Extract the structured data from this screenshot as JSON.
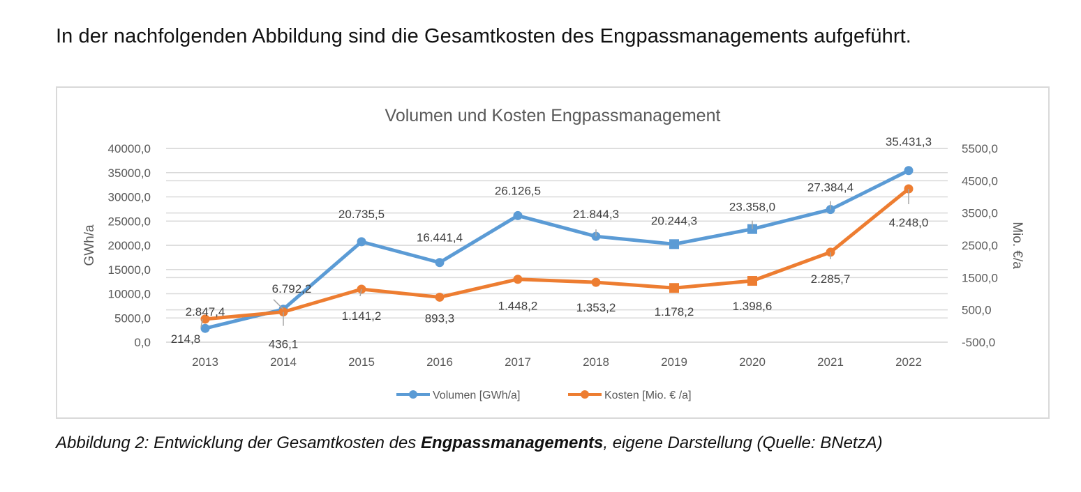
{
  "document": {
    "intro_text": "In der nachfolgenden Abbildung sind die Gesamtkosten des Engpassmanagements aufgeführt.",
    "caption": {
      "prefix": "Abbildung 2: Entwicklung der Gesamtkosten des ",
      "bold": "Engpassmanagements",
      "suffix": ", eigene Darstellung (Quelle: BNetzA)"
    }
  },
  "chart_data": {
    "type": "line",
    "title": "Volumen und Kosten Engpassmanagement",
    "xlabel": "",
    "ylabel": "GWh/a",
    "y2label": "Mio. €/a",
    "categories": [
      "2013",
      "2014",
      "2015",
      "2016",
      "2017",
      "2018",
      "2019",
      "2020",
      "2021",
      "2022"
    ],
    "ylim": [
      0,
      40000
    ],
    "yticks": [
      "0,0",
      "5000,0",
      "10000,0",
      "15000,0",
      "20000,0",
      "25000,0",
      "30000,0",
      "35000,0",
      "40000,0"
    ],
    "y2lim": [
      -500,
      5500
    ],
    "y2ticks": [
      "-500,0",
      "500,0",
      "1500,0",
      "2500,0",
      "3500,0",
      "4500,0",
      "5500,0"
    ],
    "grid": true,
    "legend_position": "bottom",
    "series": [
      {
        "name": "Volumen [GWh/a]",
        "axis": "left",
        "color": "#5b9bd5",
        "values": [
          2847.4,
          6792.2,
          20735.5,
          16441.4,
          26126.5,
          21844.3,
          20244.3,
          23358.0,
          27384.4,
          35431.3
        ],
        "labels": [
          "2.847,4",
          "6.792,2",
          "20.735,5",
          "16.441,4",
          "26.126,5",
          "21.844,3",
          "20.244,3",
          "23.358,0",
          "27.384,4",
          "35.431,3"
        ],
        "markers": [
          "circle",
          "circle",
          "circle",
          "circle",
          "circle",
          "circle",
          "square",
          "square",
          "circle",
          "circle"
        ]
      },
      {
        "name": "Kosten [Mio. € /a]",
        "axis": "right",
        "color": "#ed7d31",
        "values": [
          214.8,
          436.1,
          1141.2,
          893.3,
          1448.2,
          1353.2,
          1178.2,
          1398.6,
          2285.7,
          4248.0
        ],
        "labels": [
          "214,8",
          "436,1",
          "1.141,2",
          "893,3",
          "1.448,2",
          "1.353,2",
          "1.178,2",
          "1.398,6",
          "2.285,7",
          "4.248,0"
        ],
        "markers": [
          "circle",
          "circle",
          "circle",
          "circle",
          "circle",
          "circle",
          "square",
          "square",
          "circle",
          "circle"
        ]
      }
    ]
  }
}
